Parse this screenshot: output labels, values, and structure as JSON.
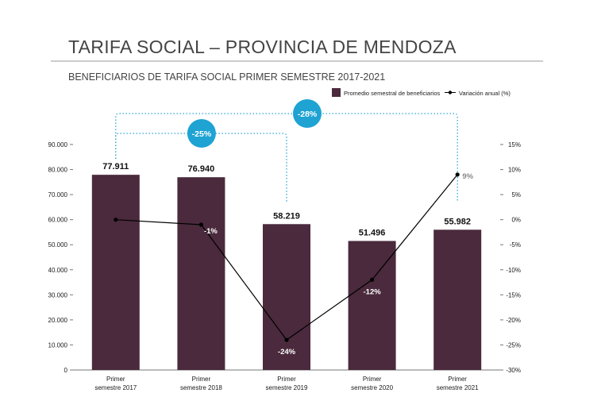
{
  "header": {
    "title": "TARIFA SOCIAL – PROVINCIA DE MENDOZA",
    "subtitle": "BENEFICIARIOS DE TARIFA SOCIAL PRIMER SEMESTRE 2017-2021"
  },
  "colors": {
    "bar": "#4a2a3c",
    "line": "#000000",
    "bracket": "#2aa7d6",
    "badge": "#1ea3d3",
    "text": "#1a1a1a",
    "muted": "#555555"
  },
  "chart_data": {
    "type": "bar",
    "categories": [
      [
        "Primer",
        "semestre 2017"
      ],
      [
        "Primer",
        "semestre 2018"
      ],
      [
        "Primer",
        "semestre 2019"
      ],
      [
        "Primer",
        "semestre 2020"
      ],
      [
        "Primer",
        "semestre 2021"
      ]
    ],
    "series": [
      {
        "name": "Promedio semestral de beneficiarios",
        "type": "bar",
        "axis": "left",
        "values": [
          77911,
          76940,
          58219,
          51496,
          55982
        ],
        "labels": [
          "77.911",
          "76.940",
          "58.219",
          "51.496",
          "55.982"
        ]
      },
      {
        "name": "Variación anual (%)",
        "type": "line",
        "axis": "right",
        "values": [
          0,
          -1,
          -24,
          -12,
          9
        ],
        "labels": [
          "",
          "-1%",
          "-24%",
          "-12%",
          "9%"
        ]
      }
    ],
    "y_left": {
      "ylim": [
        0,
        90000
      ],
      "ticks": [
        0,
        10000,
        20000,
        30000,
        40000,
        50000,
        60000,
        70000,
        80000,
        90000
      ],
      "tick_labels": [
        "0",
        "10.000",
        "20.000",
        "30.000",
        "40.000",
        "50.000",
        "60.000",
        "70.000",
        "80.000",
        "90.000"
      ]
    },
    "y_right": {
      "ylim": [
        -30,
        15
      ],
      "ticks": [
        -30,
        -25,
        -20,
        -15,
        -10,
        -5,
        0,
        5,
        10,
        15
      ],
      "tick_labels": [
        "-30%",
        "-25%",
        "-20%",
        "-15%",
        "-10%",
        "-5%",
        "0%",
        "5%",
        "10%",
        "15%"
      ]
    },
    "legend_position": "top-right",
    "annotations": [
      {
        "from": 0,
        "to": 2,
        "label": "-25%"
      },
      {
        "from": 0,
        "to": 4,
        "label": "-28%"
      }
    ],
    "grid": false
  }
}
